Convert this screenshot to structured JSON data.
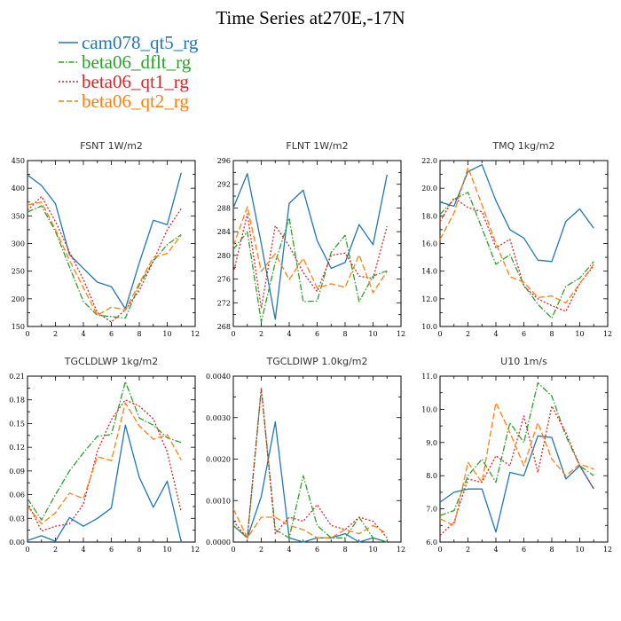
{
  "title": "Time Series at270E,-17N",
  "legend": [
    {
      "name": "cam078_qt5_rg",
      "color": "#1f77b4"
    },
    {
      "name": "beta06_dflt_rg",
      "color": "#2ca02c"
    },
    {
      "name": "beta06_qt1_rg",
      "color": "#d62728"
    },
    {
      "name": "beta06_qt2_rg",
      "color": "#ff7f0e"
    }
  ],
  "chart_data": [
    {
      "type": "line",
      "title": "FSNT   1W/m2",
      "x": [
        0,
        1,
        2,
        3,
        4,
        5,
        6,
        7,
        8,
        9,
        10,
        11
      ],
      "xlim": [
        0,
        12
      ],
      "xticks": [
        "0",
        "2",
        "4",
        "6",
        "8",
        "10",
        "12"
      ],
      "ylim": [
        150,
        450
      ],
      "yticks": [
        "150",
        "200",
        "250",
        "300",
        "350",
        "400",
        "450"
      ],
      "series": [
        {
          "name": "cam078_qt5_rg",
          "color": "#1f77b4",
          "dash": "",
          "values": [
            424,
            405,
            372,
            280,
            255,
            230,
            222,
            182,
            265,
            342,
            334,
            428
          ]
        },
        {
          "name": "beta06_dflt_rg",
          "color": "#2ca02c",
          "dash": "7,2,1.5,2",
          "values": [
            357,
            368,
            322,
            258,
            195,
            170,
            168,
            165,
            225,
            268,
            298,
            316
          ]
        },
        {
          "name": "beta06_qt1_rg",
          "color": "#d62728",
          "dash": "2,2",
          "values": [
            360,
            385,
            340,
            285,
            235,
            175,
            158,
            180,
            215,
            268,
            325,
            363
          ]
        },
        {
          "name": "beta06_qt2_rg",
          "color": "#ff7f0e",
          "dash": "7,3",
          "values": [
            370,
            375,
            325,
            270,
            220,
            170,
            185,
            180,
            228,
            275,
            282,
            315
          ]
        }
      ]
    },
    {
      "type": "line",
      "title": "FLNT   1W/m2",
      "x": [
        0,
        1,
        2,
        3,
        4,
        5,
        6,
        7,
        8,
        9,
        10,
        11
      ],
      "xlim": [
        0,
        12
      ],
      "xticks": [
        "0",
        "2",
        "4",
        "6",
        "8",
        "10",
        "12"
      ],
      "ylim": [
        268,
        296
      ],
      "yticks": [
        "268",
        "272",
        "276",
        "280",
        "284",
        "288",
        "292",
        "296"
      ],
      "series": [
        {
          "name": "cam078_qt5_rg",
          "color": "#1f77b4",
          "dash": "",
          "values": [
            288,
            293.8,
            282,
            269.2,
            288.8,
            291,
            282.5,
            277.8,
            278.8,
            285.2,
            281.8,
            293.6
          ]
        },
        {
          "name": "beta06_dflt_rg",
          "color": "#2ca02c",
          "dash": "7,2,1.5,2",
          "values": [
            281,
            284,
            268.8,
            278.8,
            286.3,
            272.2,
            272.3,
            280.5,
            283.4,
            272.2,
            276.5,
            277.4
          ]
        },
        {
          "name": "beta06_qt1_rg",
          "color": "#d62728",
          "dash": "2,2",
          "values": [
            277,
            287,
            271.1,
            285,
            281.6,
            277.1,
            273.9,
            280,
            280.4,
            276.5,
            276.1,
            284.9
          ]
        },
        {
          "name": "beta06_qt2_rg",
          "color": "#ff7f0e",
          "dash": "7,3",
          "values": [
            281.6,
            288.2,
            277.3,
            280.3,
            275.9,
            279.5,
            274.5,
            275.2,
            274.6,
            280.1,
            273.7,
            277.3
          ]
        }
      ]
    },
    {
      "type": "line",
      "title": "TMQ   1kg/m2",
      "x": [
        0,
        1,
        2,
        3,
        4,
        5,
        6,
        7,
        8,
        9,
        10,
        11
      ],
      "xlim": [
        0,
        12
      ],
      "xticks": [
        "0",
        "2",
        "4",
        "6",
        "8",
        "10",
        "12"
      ],
      "ylim": [
        10,
        22
      ],
      "yticks": [
        "10.0",
        "12.0",
        "14.0",
        "16.0",
        "18.0",
        "20.0",
        "22.0"
      ],
      "series": [
        {
          "name": "cam078_qt5_rg",
          "color": "#1f77b4",
          "dash": "",
          "values": [
            19.0,
            18.7,
            21.2,
            21.7,
            19.1,
            17.0,
            16.4,
            14.8,
            14.7,
            17.6,
            18.5,
            17.1
          ]
        },
        {
          "name": "beta06_dflt_rg",
          "color": "#2ca02c",
          "dash": "7,2,1.5,2",
          "values": [
            18.1,
            19.2,
            19.7,
            17.1,
            14.5,
            15.2,
            13.0,
            11.6,
            10.6,
            12.9,
            13.5,
            14.7
          ]
        },
        {
          "name": "beta06_qt1_rg",
          "color": "#d62728",
          "dash": "2,2",
          "values": [
            17.6,
            19.3,
            18.6,
            18.3,
            15.7,
            16.3,
            12.9,
            12.0,
            11.5,
            11.1,
            13.1,
            14.4
          ]
        },
        {
          "name": "beta06_qt2_rg",
          "color": "#ff7f0e",
          "dash": "7,3",
          "values": [
            16.3,
            18.2,
            21.5,
            18.8,
            16.0,
            13.6,
            13.2,
            12.1,
            12.2,
            11.7,
            13.1,
            14.5
          ]
        }
      ]
    },
    {
      "type": "line",
      "title": "TGCLDLWP   1kg/m2",
      "x": [
        0,
        1,
        2,
        3,
        4,
        5,
        6,
        7,
        8,
        9,
        10,
        11
      ],
      "xlim": [
        0,
        12
      ],
      "xticks": [
        "0",
        "2",
        "4",
        "6",
        "8",
        "10",
        "12"
      ],
      "ylim": [
        0,
        0.21
      ],
      "yticks": [
        "0.00",
        "0.03",
        "0.06",
        "0.09",
        "0.12",
        "0.15",
        "0.18",
        "0.21"
      ],
      "series": [
        {
          "name": "cam078_qt5_rg",
          "color": "#1f77b4",
          "dash": "",
          "values": [
            0.002,
            0.008,
            0.001,
            0.031,
            0.02,
            0.03,
            0.043,
            0.148,
            0.082,
            0.044,
            0.077,
            0.0
          ]
        },
        {
          "name": "beta06_dflt_rg",
          "color": "#2ca02c",
          "dash": "7,2,1.5,2",
          "values": [
            0.055,
            0.028,
            0.06,
            0.09,
            0.113,
            0.134,
            0.136,
            0.203,
            0.157,
            0.148,
            0.132,
            0.126
          ]
        },
        {
          "name": "beta06_qt1_rg",
          "color": "#d62728",
          "dash": "2,2",
          "values": [
            0.05,
            0.014,
            0.02,
            0.023,
            0.048,
            0.115,
            0.155,
            0.18,
            0.172,
            0.156,
            0.114,
            0.038
          ]
        },
        {
          "name": "beta06_qt2_rg",
          "color": "#ff7f0e",
          "dash": "7,3",
          "values": [
            0.045,
            0.023,
            0.037,
            0.062,
            0.055,
            0.108,
            0.103,
            0.176,
            0.147,
            0.13,
            0.136,
            0.104
          ]
        }
      ]
    },
    {
      "type": "line",
      "title": "TGCLDIWP   1.0kg/m2",
      "x": [
        0,
        1,
        2,
        3,
        4,
        5,
        6,
        7,
        8,
        9,
        10,
        11
      ],
      "xlim": [
        0,
        12
      ],
      "xticks": [
        "0",
        "2",
        "4",
        "6",
        "8",
        "10",
        "12"
      ],
      "ylim": [
        0,
        0.004
      ],
      "yticks": [
        "0.0000",
        "0.0010",
        "0.0020",
        "0.0030",
        "0.0040"
      ],
      "series": [
        {
          "name": "cam078_qt5_rg",
          "color": "#1f77b4",
          "dash": "",
          "values": [
            0.0004,
            0.0001,
            0.0011,
            0.0029,
            0.0001,
            0.0,
            0.0001,
            0.0001,
            0.0002,
            0.0,
            0.0001,
            0.0
          ]
        },
        {
          "name": "beta06_dflt_rg",
          "color": "#2ca02c",
          "dash": "7,2,1.5,2",
          "values": [
            0.0004,
            0.0001,
            0.0037,
            0.0003,
            0.0001,
            0.0016,
            0.0004,
            0.0001,
            0.0001,
            0.0006,
            0.0001,
            0.0
          ]
        },
        {
          "name": "beta06_qt1_rg",
          "color": "#d62728",
          "dash": "2,2",
          "values": [
            0.0005,
            0.0001,
            0.0037,
            0.0002,
            0.0006,
            0.0005,
            0.0009,
            0.0004,
            0.0003,
            0.0006,
            0.0005,
            0.0001
          ]
        },
        {
          "name": "beta06_qt2_rg",
          "color": "#ff7f0e",
          "dash": "7,3",
          "values": [
            0.0008,
            0.0001,
            0.0006,
            0.0006,
            0.0004,
            0.0003,
            0.0001,
            0.0001,
            0.0003,
            0.0002,
            0.0004,
            0.0002
          ]
        }
      ]
    },
    {
      "type": "line",
      "title": "U10   1m/s",
      "x": [
        0,
        1,
        2,
        3,
        4,
        5,
        6,
        7,
        8,
        9,
        10,
        11
      ],
      "xlim": [
        0,
        12
      ],
      "xticks": [
        "0",
        "2",
        "4",
        "6",
        "8",
        "10",
        "12"
      ],
      "ylim": [
        6,
        11
      ],
      "yticks": [
        "6.0",
        "7.0",
        "8.0",
        "9.0",
        "10.0",
        "11.0"
      ],
      "series": [
        {
          "name": "cam078_qt5_rg",
          "color": "#1f77b4",
          "dash": "",
          "values": [
            7.2,
            7.5,
            7.6,
            7.6,
            6.3,
            8.1,
            8.0,
            9.2,
            9.15,
            7.9,
            8.3,
            7.6
          ]
        },
        {
          "name": "beta06_dflt_rg",
          "color": "#2ca02c",
          "dash": "7,2,1.5,2",
          "values": [
            6.8,
            6.95,
            8.0,
            8.5,
            7.8,
            9.6,
            9.0,
            10.8,
            10.4,
            9.2,
            8.3,
            8.0
          ]
        },
        {
          "name": "beta06_qt1_rg",
          "color": "#d62728",
          "dash": "2,2",
          "values": [
            6.2,
            6.6,
            7.9,
            7.8,
            8.6,
            8.3,
            9.8,
            8.1,
            10.1,
            9.3,
            8.3,
            7.6
          ]
        },
        {
          "name": "beta06_qt2_rg",
          "color": "#ff7f0e",
          "dash": "7,3",
          "values": [
            6.7,
            6.5,
            8.4,
            7.8,
            10.2,
            9.3,
            8.3,
            9.6,
            8.5,
            8.0,
            8.35,
            8.2
          ]
        }
      ]
    }
  ]
}
